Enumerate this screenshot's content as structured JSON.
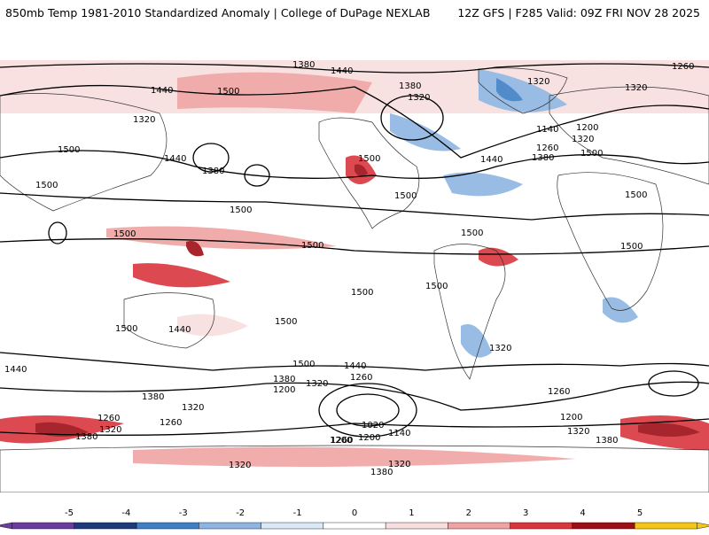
{
  "header": {
    "title_left": "850mb Temp 1981-2010 Standardized Anomaly | College of DuPage NEXLAB",
    "title_right": "12Z GFS | F285 Valid: 09Z FRI NOV 28 2025"
  },
  "map": {
    "contour_labels": [
      "1380",
      "1440",
      "1260",
      "1320",
      "1500",
      "1440",
      "1380",
      "1320",
      "1320",
      "1440",
      "1380",
      "1500",
      "1500",
      "1500",
      "1500",
      "1320",
      "1140",
      "1200",
      "1260",
      "1320",
      "1380",
      "1500",
      "1500",
      "1500",
      "1500",
      "1440",
      "1500",
      "1500",
      "1500",
      "1500",
      "1500",
      "1500",
      "1500",
      "1440",
      "1500",
      "1440",
      "1380",
      "1320",
      "1320",
      "1260",
      "1200",
      "1380",
      "1260",
      "1440",
      "1320",
      "1320",
      "1260",
      "1380",
      "1200",
      "1320",
      "1380",
      "1260",
      "1200",
      "1320",
      "1020",
      "1140",
      "1200",
      "1260",
      "1320",
      "1380"
    ],
    "colors": {
      "neg5": "#6a3d9a",
      "neg4": "#1f3a78",
      "neg3": "#3f7fc4",
      "neg2": "#8db5e0",
      "neg1": "#dbe8f6",
      "zero": "#ffffff",
      "pos1": "#f8dede",
      "pos2": "#efa3a3",
      "pos3": "#d9363e",
      "pos4": "#9e0f17",
      "pos5": "#f5c518"
    }
  },
  "colorbar": {
    "ticks": [
      "-5",
      "-4",
      "-3",
      "-2",
      "-1",
      "0",
      "1",
      "2",
      "3",
      "4",
      "5"
    ],
    "colors": [
      "#6a3d9a",
      "#1f3a78",
      "#3f7fc4",
      "#8db5e0",
      "#dbe8f6",
      "#ffffff",
      "#f8dede",
      "#efa3a3",
      "#d9363e",
      "#9e0f17",
      "#f5c518"
    ]
  }
}
